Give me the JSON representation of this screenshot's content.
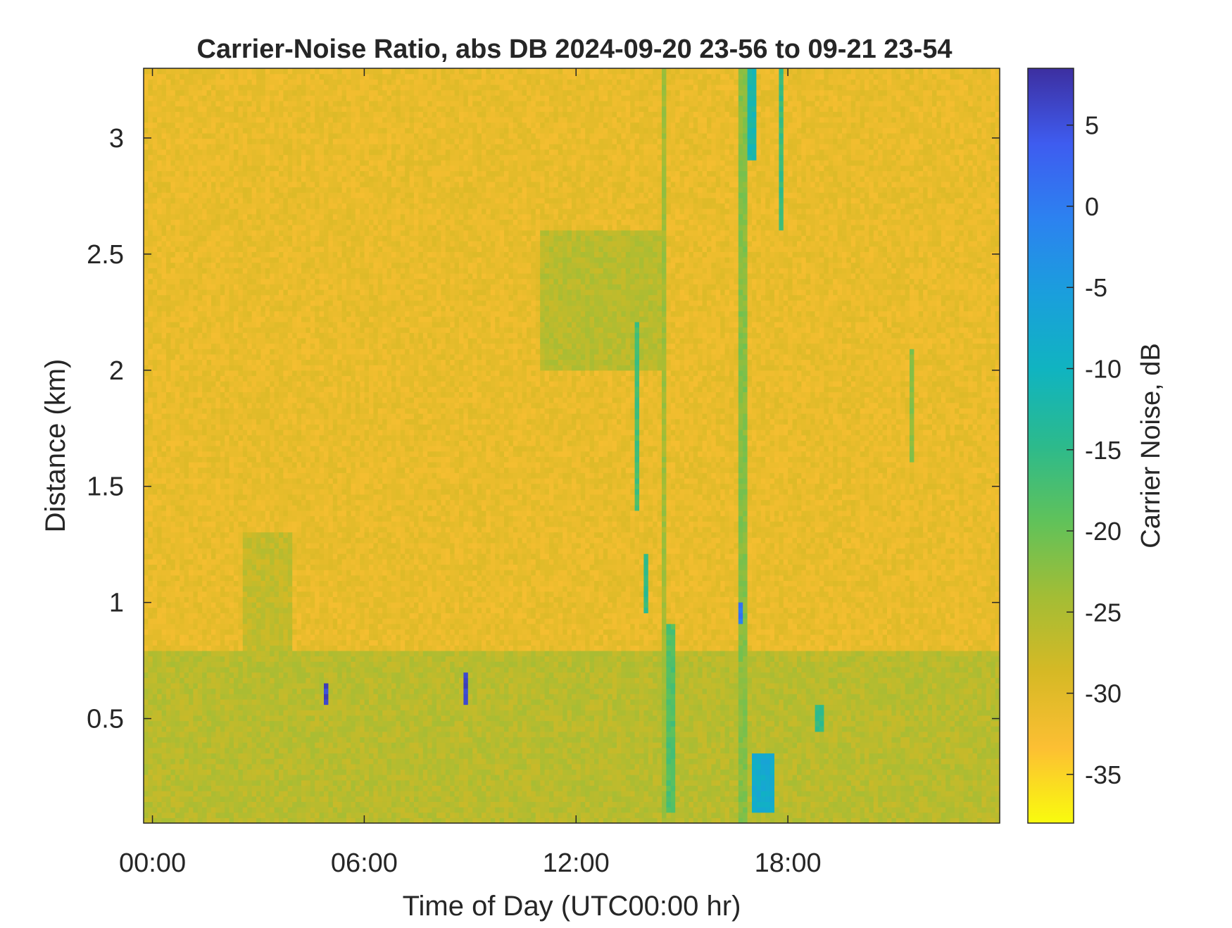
{
  "chart_data": {
    "type": "heatmap",
    "title": "Carrier-Noise Ratio, abs DB 2024-09-20 23-56 to 09-21 23-54",
    "xlabel": "Time of Day (UTC00:00 hr)",
    "ylabel": "Distance (km)",
    "xlim": [
      -0.25,
      24
    ],
    "ylim": [
      0.05,
      3.3
    ],
    "x_ticks": [
      {
        "value": 0,
        "label": "00:00"
      },
      {
        "value": 6,
        "label": "06:00"
      },
      {
        "value": 12,
        "label": "12:00"
      },
      {
        "value": 18,
        "label": "18:00"
      }
    ],
    "y_ticks": [
      {
        "value": 0.5,
        "label": "0.5"
      },
      {
        "value": 1,
        "label": "1"
      },
      {
        "value": 1.5,
        "label": "1.5"
      },
      {
        "value": 2,
        "label": "2"
      },
      {
        "value": 2.5,
        "label": "2.5"
      },
      {
        "value": 3,
        "label": "3"
      }
    ],
    "colorbar": {
      "label": "Carrier Noise, dB",
      "range": [
        -38,
        8.5
      ],
      "direction": "reversed",
      "colormap": [
        "#f9fb0e",
        "#fcbf33",
        "#d6b925",
        "#a3bd35",
        "#60c25a",
        "#2cba8c",
        "#10b4c0",
        "#1a9fdc",
        "#2c82f0",
        "#3e5cf0",
        "#3d2fa0"
      ],
      "ticks": [
        {
          "value": 5,
          "label": "5"
        },
        {
          "value": 0,
          "label": "0"
        },
        {
          "value": -5,
          "label": "-5"
        },
        {
          "value": -10,
          "label": "-10"
        },
        {
          "value": -15,
          "label": "-15"
        },
        {
          "value": -20,
          "label": "-20"
        },
        {
          "value": -25,
          "label": "-25"
        },
        {
          "value": -30,
          "label": "-30"
        },
        {
          "value": -35,
          "label": "-35"
        }
      ]
    },
    "background_level_db": -31,
    "features": [
      {
        "kind": "near-surface layer",
        "x_range": [
          -0.25,
          24
        ],
        "y_range": [
          0.05,
          0.8
        ],
        "db": -26
      },
      {
        "kind": "plume",
        "x_range": [
          2.5,
          4.0
        ],
        "y_range": [
          0.8,
          1.3
        ],
        "db": -27
      },
      {
        "kind": "plume",
        "x_range": [
          11.0,
          14.5
        ],
        "y_range": [
          2.0,
          2.6
        ],
        "db": -26
      },
      {
        "kind": "column",
        "x_range": [
          13.6,
          13.8
        ],
        "y_range": [
          1.4,
          2.2
        ],
        "db": -17
      },
      {
        "kind": "column",
        "x_range": [
          14.4,
          14.6
        ],
        "y_range": [
          0.05,
          3.3
        ],
        "db": -24
      },
      {
        "kind": "column",
        "x_range": [
          14.5,
          14.8
        ],
        "y_range": [
          0.1,
          0.9
        ],
        "db": -18
      },
      {
        "kind": "column",
        "x_range": [
          13.9,
          14.1
        ],
        "y_range": [
          0.95,
          1.2
        ],
        "db": -15
      },
      {
        "kind": "column",
        "x_range": [
          16.6,
          16.8
        ],
        "y_range": [
          0.05,
          3.3
        ],
        "db": -22
      },
      {
        "kind": "column",
        "x_range": [
          16.9,
          17.1
        ],
        "y_range": [
          2.9,
          3.3
        ],
        "db": -12
      },
      {
        "kind": "column",
        "x_range": [
          17.8,
          17.9
        ],
        "y_range": [
          2.6,
          3.3
        ],
        "db": -16
      },
      {
        "kind": "column",
        "x_range": [
          17.0,
          17.6
        ],
        "y_range": [
          0.1,
          0.35
        ],
        "db": -8
      },
      {
        "kind": "column",
        "x_range": [
          18.8,
          19.0
        ],
        "y_range": [
          0.45,
          0.55
        ],
        "db": -15
      },
      {
        "kind": "column",
        "x_range": [
          21.5,
          21.6
        ],
        "y_range": [
          1.6,
          2.1
        ],
        "db": -22
      },
      {
        "kind": "spot",
        "x_range": [
          4.8,
          5.0
        ],
        "y_range": [
          0.55,
          0.65
        ],
        "db": 6
      },
      {
        "kind": "spot",
        "x_range": [
          8.8,
          9.0
        ],
        "y_range": [
          0.55,
          0.7
        ],
        "db": 6
      },
      {
        "kind": "spot",
        "x_range": [
          16.65,
          16.75
        ],
        "y_range": [
          0.9,
          1.0
        ],
        "db": 0
      }
    ]
  }
}
